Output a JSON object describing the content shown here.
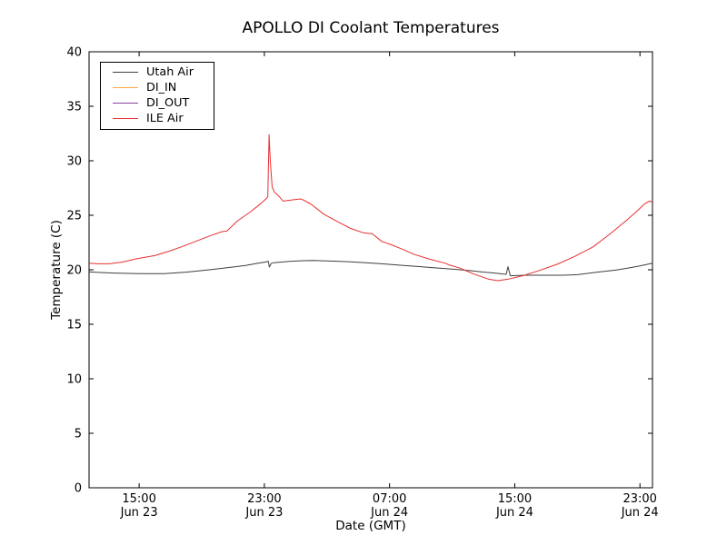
{
  "chart_data": {
    "type": "line",
    "title": "APOLLO DI Coolant Temperatures",
    "xlabel": "Date (GMT)",
    "ylabel": "Temperature (C)",
    "x_unit": "hours since Jun 23 00:00 GMT",
    "xlim": [
      11.8,
      47.8
    ],
    "ylim": [
      0,
      40
    ],
    "grid": false,
    "legend_position": "upper left",
    "frame_color": "#000000",
    "y_ticks": [
      0,
      5,
      10,
      15,
      20,
      25,
      30,
      35,
      40
    ],
    "x_ticks": [
      {
        "hour": 15,
        "time": "15:00",
        "date": "Jun 23"
      },
      {
        "hour": 23,
        "time": "23:00",
        "date": "Jun 23"
      },
      {
        "hour": 31,
        "time": "07:00",
        "date": "Jun 24"
      },
      {
        "hour": 39,
        "time": "15:00",
        "date": "Jun 24"
      },
      {
        "hour": 47,
        "time": "23:00",
        "date": "Jun 24"
      }
    ],
    "series": [
      {
        "name": "Utah Air",
        "color": "#3f3f3f",
        "points": [
          [
            11.8,
            19.8
          ],
          [
            12.5,
            19.75
          ],
          [
            13.7,
            19.68
          ],
          [
            15.0,
            19.65
          ],
          [
            16.6,
            19.65
          ],
          [
            18.0,
            19.78
          ],
          [
            19.5,
            20.0
          ],
          [
            21.0,
            20.25
          ],
          [
            21.8,
            20.4
          ],
          [
            22.6,
            20.6
          ],
          [
            23.1,
            20.72
          ],
          [
            23.25,
            20.78
          ],
          [
            23.32,
            20.25
          ],
          [
            23.45,
            20.6
          ],
          [
            23.6,
            20.65
          ],
          [
            24.7,
            20.78
          ],
          [
            25.5,
            20.83
          ],
          [
            26.1,
            20.85
          ],
          [
            27.0,
            20.82
          ],
          [
            28.2,
            20.75
          ],
          [
            29.5,
            20.65
          ],
          [
            30.5,
            20.55
          ],
          [
            31.7,
            20.42
          ],
          [
            32.8,
            20.3
          ],
          [
            34.0,
            20.17
          ],
          [
            35.1,
            20.05
          ],
          [
            36.2,
            19.92
          ],
          [
            36.9,
            19.8
          ],
          [
            37.8,
            19.68
          ],
          [
            38.3,
            19.6
          ],
          [
            38.45,
            19.58
          ],
          [
            38.57,
            20.28
          ],
          [
            38.72,
            19.45
          ],
          [
            39.2,
            19.48
          ],
          [
            39.8,
            19.5
          ],
          [
            41.0,
            19.5
          ],
          [
            42.1,
            19.5
          ],
          [
            43.0,
            19.55
          ],
          [
            44.4,
            19.8
          ],
          [
            45.5,
            19.98
          ],
          [
            46.2,
            20.15
          ],
          [
            47.0,
            20.35
          ],
          [
            47.8,
            20.6
          ]
        ]
      },
      {
        "name": "DI_IN",
        "color": "#ffaa44",
        "points": []
      },
      {
        "name": "DI_OUT",
        "color": "#8c3fa0",
        "points": []
      },
      {
        "name": "ILE Air",
        "color": "#e83030",
        "points": [
          [
            11.8,
            20.6
          ],
          [
            12.4,
            20.55
          ],
          [
            13.1,
            20.55
          ],
          [
            13.9,
            20.7
          ],
          [
            14.8,
            21.0
          ],
          [
            16.0,
            21.3
          ],
          [
            16.9,
            21.7
          ],
          [
            17.7,
            22.1
          ],
          [
            18.6,
            22.6
          ],
          [
            19.5,
            23.1
          ],
          [
            20.3,
            23.5
          ],
          [
            20.6,
            23.55
          ],
          [
            21.3,
            24.5
          ],
          [
            22.1,
            25.3
          ],
          [
            22.8,
            26.1
          ],
          [
            23.1,
            26.5
          ],
          [
            23.22,
            26.7
          ],
          [
            23.3,
            32.4
          ],
          [
            23.38,
            30.0
          ],
          [
            23.5,
            27.6
          ],
          [
            23.65,
            27.1
          ],
          [
            23.9,
            26.8
          ],
          [
            24.2,
            26.3
          ],
          [
            24.7,
            26.4
          ],
          [
            25.3,
            26.5
          ],
          [
            25.5,
            26.4
          ],
          [
            26.0,
            26.0
          ],
          [
            26.8,
            25.1
          ],
          [
            27.7,
            24.4
          ],
          [
            28.5,
            23.8
          ],
          [
            29.3,
            23.4
          ],
          [
            29.9,
            23.3
          ],
          [
            30.5,
            22.6
          ],
          [
            31.1,
            22.3
          ],
          [
            31.8,
            21.9
          ],
          [
            32.6,
            21.4
          ],
          [
            33.5,
            21.0
          ],
          [
            34.56,
            20.6
          ],
          [
            34.8,
            20.45
          ],
          [
            35.5,
            20.15
          ],
          [
            36.4,
            19.6
          ],
          [
            37.3,
            19.15
          ],
          [
            37.93,
            19.0
          ],
          [
            38.6,
            19.15
          ],
          [
            39.5,
            19.45
          ],
          [
            40.5,
            19.9
          ],
          [
            41.7,
            20.5
          ],
          [
            42.8,
            21.2
          ],
          [
            44.0,
            22.1
          ],
          [
            45.1,
            23.3
          ],
          [
            46.2,
            24.6
          ],
          [
            46.9,
            25.5
          ],
          [
            47.3,
            26.05
          ],
          [
            47.6,
            26.3
          ],
          [
            47.8,
            26.2
          ]
        ]
      }
    ]
  }
}
